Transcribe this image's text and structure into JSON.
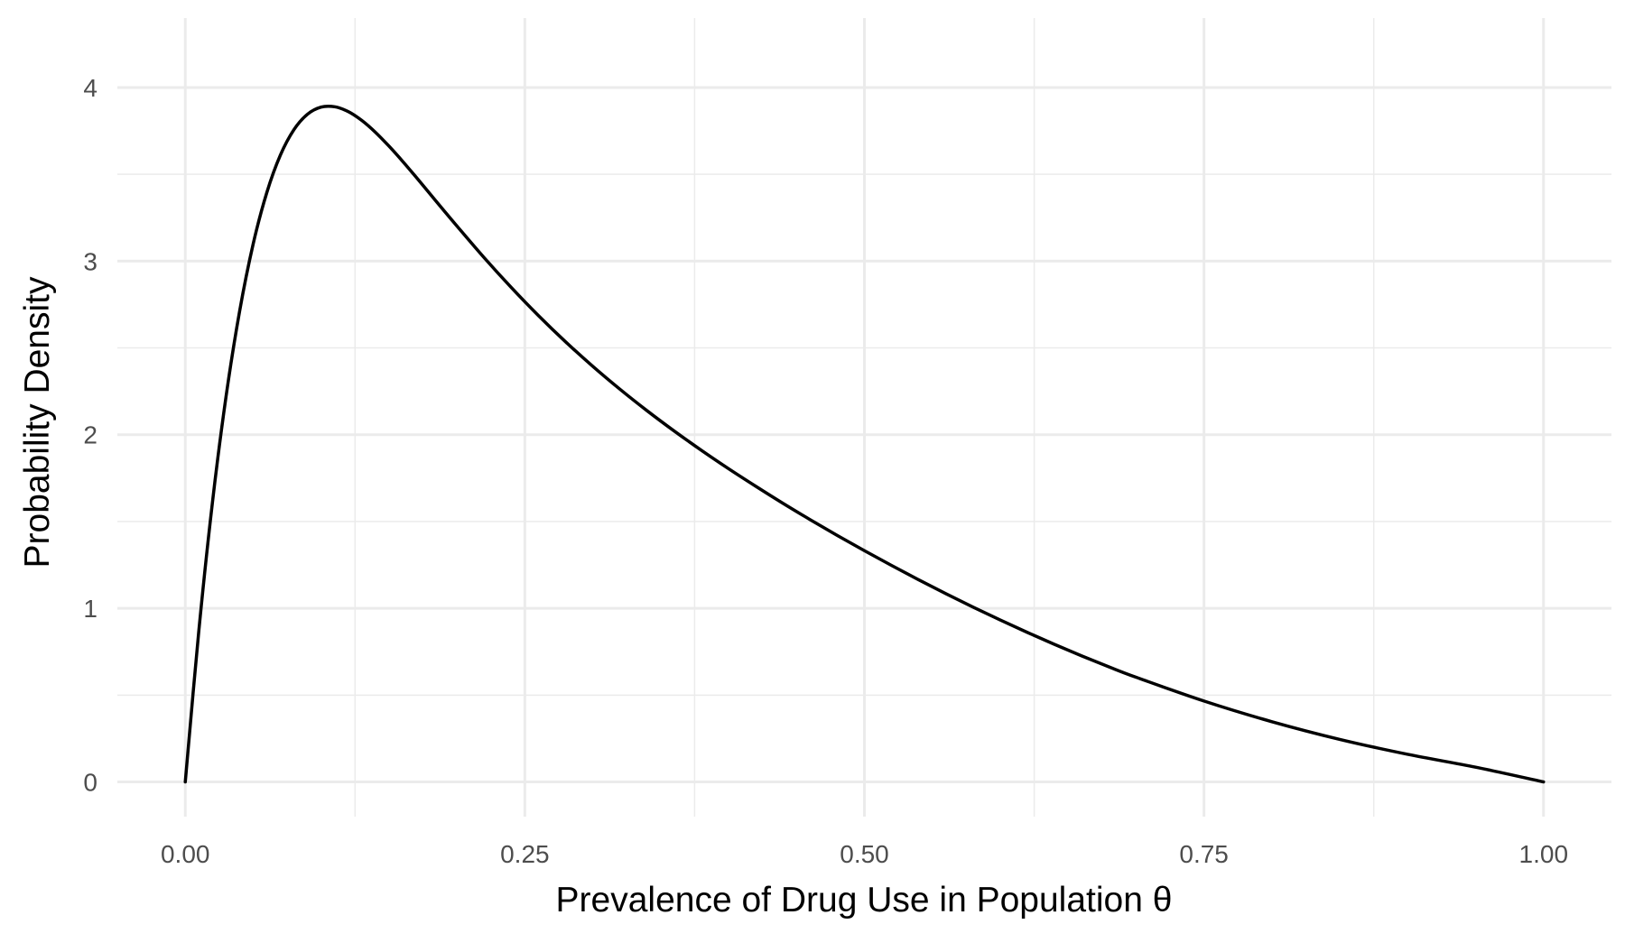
{
  "chart_data": {
    "type": "line",
    "title": "",
    "xlabel": "Prevalence of Drug Use in Population θ",
    "ylabel": "Probability Density",
    "xlim": [
      -0.05,
      1.05
    ],
    "ylim": [
      -0.2,
      4.4
    ],
    "x_ticks": [
      0,
      0.25,
      0.5,
      0.75,
      1
    ],
    "x_tick_labels": [
      "0.00",
      "0.25",
      "0.50",
      "0.75",
      "1.00"
    ],
    "y_ticks": [
      0,
      1,
      2,
      3,
      4
    ],
    "y_tick_labels": [
      "0",
      "1",
      "2",
      "3",
      "4"
    ],
    "grid": true,
    "legend": "none",
    "line_color": "#000000",
    "grid_color": "#ebebeb",
    "series": [
      {
        "x": [
          0,
          0.01,
          0.02,
          0.03,
          0.04,
          0.05,
          0.06,
          0.07,
          0.08,
          0.09,
          0.1,
          0.11,
          0.12,
          0.13,
          0.14,
          0.15,
          0.16,
          0.17,
          0.18,
          0.19,
          0.2,
          0.22,
          0.24,
          0.26,
          0.28,
          0.3,
          0.32,
          0.34,
          0.36,
          0.38,
          0.4,
          0.42,
          0.44,
          0.46,
          0.48,
          0.5,
          0.52,
          0.54,
          0.56,
          0.58,
          0.6,
          0.62,
          0.64,
          0.66,
          0.68,
          0.7,
          0.75,
          0.8,
          0.85,
          0.9,
          0.95,
          1
        ],
        "y": [
          0,
          0.872,
          1.61,
          2.219,
          2.711,
          3.099,
          3.394,
          3.61,
          3.757,
          3.846,
          3.887,
          3.889,
          3.861,
          3.81,
          3.742,
          3.662,
          3.575,
          3.483,
          3.389,
          3.295,
          3.202,
          3.02,
          2.848,
          2.686,
          2.535,
          2.394,
          2.262,
          2.138,
          2.021,
          1.91,
          1.804,
          1.703,
          1.605,
          1.511,
          1.42,
          1.332,
          1.247,
          1.164,
          1.084,
          1.007,
          0.933,
          0.861,
          0.792,
          0.726,
          0.663,
          0.603,
          0.466,
          0.347,
          0.245,
          0.159,
          0.085,
          0
        ]
      }
    ]
  }
}
